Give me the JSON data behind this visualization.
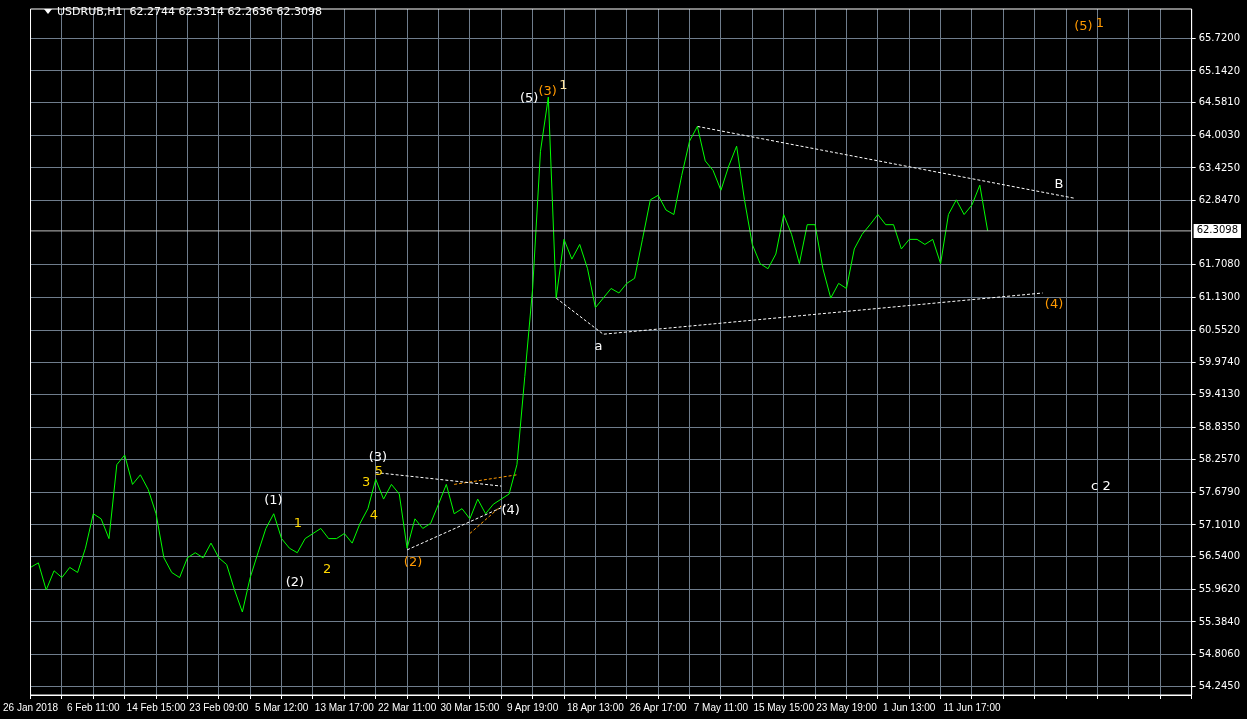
{
  "chart_data": {
    "type": "line",
    "title": "USDRUB,H1  62.2744 62.3314 62.2636 62.3098",
    "categories": [
      "26 Jan 2018",
      null,
      null,
      null,
      null,
      null,
      null,
      null,
      "6 Feb 11:00",
      null,
      null,
      null,
      null,
      null,
      null,
      null,
      "14 Feb 15:00",
      null,
      null,
      null,
      null,
      null,
      null,
      null,
      "23 Feb 09:00",
      null,
      null,
      null,
      null,
      null,
      null,
      null,
      "5 Mar 12:00",
      null,
      null,
      null,
      null,
      null,
      null,
      null,
      "13 Mar 17:00",
      null,
      null,
      null,
      null,
      null,
      null,
      null,
      "22 Mar 11:00",
      null,
      null,
      null,
      null,
      null,
      null,
      null,
      "30 Mar 15:00",
      null,
      null,
      null,
      null,
      null,
      null,
      null,
      "9 Apr 19:00",
      null,
      null,
      null,
      null,
      null,
      null,
      null,
      "18 Apr 13:00",
      null,
      null,
      null,
      null,
      null,
      null,
      null,
      "26 Apr 17:00",
      null,
      null,
      null,
      null,
      null,
      null,
      null,
      "7 May 11:00",
      null,
      null,
      null,
      null,
      null,
      null,
      null,
      "15 May 15:00",
      null,
      null,
      null,
      null,
      null,
      null,
      null,
      "23 May 19:00",
      null,
      null,
      null,
      null,
      null,
      null,
      null,
      "1 Jun 13:00",
      null,
      null,
      null,
      null,
      null,
      null,
      null,
      "11 Jun 17:00",
      null,
      null,
      null,
      null,
      null,
      null,
      null,
      null,
      null,
      null,
      null,
      null,
      null,
      null,
      null,
      null,
      null,
      null,
      null,
      null,
      null,
      null,
      null,
      null,
      null,
      null,
      null,
      null
    ],
    "ylim": [
      54.09,
      66.24
    ],
    "yticks": [
      {
        "value": 54.245,
        "label": "54.2450"
      },
      {
        "value": 54.806,
        "label": "54.8060"
      },
      {
        "value": 55.384,
        "label": "55.3840"
      },
      {
        "value": 55.962,
        "label": "55.9620"
      },
      {
        "value": 56.54,
        "label": "56.5400"
      },
      {
        "value": 57.101,
        "label": "57.1010"
      },
      {
        "value": 57.679,
        "label": "57.6790"
      },
      {
        "value": 58.257,
        "label": "58.2570"
      },
      {
        "value": 58.835,
        "label": "58.8350"
      },
      {
        "value": 59.413,
        "label": "59.4130"
      },
      {
        "value": 59.974,
        "label": "59.9740"
      },
      {
        "value": 60.552,
        "label": "60.5520"
      },
      {
        "value": 61.13,
        "label": "61.1300"
      },
      {
        "value": 61.708,
        "label": "61.7080"
      },
      {
        "value": 62.847,
        "label": "62.8470"
      },
      {
        "value": 63.425,
        "label": "63.4250"
      },
      {
        "value": 64.003,
        "label": "64.0030"
      },
      {
        "value": 64.581,
        "label": "64.5810"
      },
      {
        "value": 65.142,
        "label": "65.1420"
      },
      {
        "value": 65.72,
        "label": "65.7200"
      }
    ],
    "grid": true,
    "ref_lines": [
      {
        "axis": "y",
        "value": 62.3098,
        "label": "62.3098",
        "color": "#c0c0c0"
      }
    ],
    "series": [
      {
        "type": "line",
        "color": "#00ff00",
        "values": [
          56.35,
          56.43,
          55.95,
          56.29,
          56.17,
          56.35,
          56.26,
          56.69,
          57.3,
          57.21,
          56.86,
          58.17,
          58.34,
          57.82,
          57.99,
          57.73,
          57.3,
          56.52,
          56.26,
          56.17,
          56.52,
          56.61,
          56.52,
          56.78,
          56.52,
          56.4,
          55.95,
          55.56,
          56.17,
          56.61,
          57.04,
          57.3,
          56.86,
          56.69,
          56.61,
          56.86,
          56.95,
          57.04,
          56.86,
          56.86,
          56.95,
          56.78,
          57.13,
          57.39,
          57.91,
          57.56,
          57.82,
          57.65,
          56.69,
          57.21,
          57.04,
          57.13,
          57.47,
          57.82,
          57.3,
          57.39,
          57.21,
          57.56,
          57.3,
          57.47,
          57.56,
          57.65,
          58.17,
          59.73,
          61.29,
          63.72,
          64.68,
          61.12,
          62.16,
          61.81,
          62.07,
          61.64,
          60.95,
          61.12,
          61.29,
          61.21,
          61.38,
          61.47,
          62.16,
          62.86,
          62.94,
          62.68,
          62.6,
          63.29,
          63.9,
          64.16,
          63.55,
          63.38,
          63.03,
          63.46,
          63.81,
          62.86,
          62.07,
          61.73,
          61.64,
          61.9,
          62.6,
          62.25,
          61.73,
          62.42,
          62.42,
          61.64,
          61.12,
          61.38,
          61.29,
          61.99,
          62.25,
          62.42,
          62.6,
          62.42,
          62.42,
          61.99,
          62.16,
          62.16,
          62.07,
          62.16,
          61.73,
          62.6,
          62.86,
          62.6,
          62.77,
          63.12,
          62.31,
          null,
          null,
          null,
          null,
          null,
          null,
          null,
          null,
          null,
          null,
          null,
          null,
          null,
          null,
          null,
          null,
          null,
          null,
          null,
          null,
          null,
          null,
          null,
          null,
          null,
          null
        ]
      },
      {
        "type": "line",
        "color": "#ffffff",
        "line_style": "dashed",
        "values": [
          null,
          null,
          null,
          null,
          null,
          null,
          null,
          null,
          null,
          null,
          null,
          null,
          null,
          null,
          null,
          null,
          null,
          null,
          null,
          null,
          null,
          null,
          null,
          null,
          null,
          null,
          null,
          null,
          null,
          null,
          null,
          null,
          null,
          null,
          null,
          null,
          null,
          null,
          null,
          null,
          null,
          null,
          null,
          null,
          null,
          null,
          null,
          null,
          null,
          null,
          null,
          null,
          null,
          null,
          null,
          null,
          null,
          null,
          null,
          null,
          null,
          null,
          null,
          null,
          null,
          null,
          null,
          null,
          null,
          null,
          null,
          null,
          null,
          null,
          null,
          null,
          null,
          null,
          null,
          null,
          null,
          null,
          null,
          null,
          null,
          64.16,
          null,
          null,
          null,
          null,
          null,
          null,
          null,
          null,
          null,
          null,
          null,
          null,
          null,
          null,
          null,
          null,
          null,
          null,
          null,
          null,
          null,
          null,
          null,
          null,
          null,
          null,
          null,
          null,
          null,
          null,
          null,
          null,
          null,
          null,
          null,
          null,
          null,
          null,
          null,
          null,
          null,
          null,
          null,
          null,
          null,
          null,
          null,
          62.89,
          null,
          null,
          null,
          null,
          null,
          null,
          null,
          null,
          null,
          null,
          null,
          null,
          null,
          null,
          null
        ]
      },
      {
        "type": "line",
        "color": "#ffffff",
        "line_style": "dashed",
        "values": [
          null,
          null,
          null,
          null,
          null,
          null,
          null,
          null,
          null,
          null,
          null,
          null,
          null,
          null,
          null,
          null,
          null,
          null,
          null,
          null,
          null,
          null,
          null,
          null,
          null,
          null,
          null,
          null,
          null,
          null,
          null,
          null,
          null,
          null,
          null,
          null,
          null,
          null,
          null,
          null,
          null,
          null,
          null,
          null,
          null,
          null,
          null,
          null,
          null,
          null,
          null,
          null,
          null,
          null,
          null,
          null,
          null,
          null,
          null,
          null,
          null,
          null,
          null,
          null,
          null,
          null,
          null,
          61.12,
          null,
          null,
          null,
          null,
          null,
          60.48,
          null,
          null,
          null,
          null,
          null,
          null,
          null,
          null,
          null,
          null,
          null,
          null,
          null,
          null,
          null,
          null,
          null,
          null,
          null,
          null,
          null,
          null,
          null,
          null,
          null,
          null,
          null,
          null,
          null,
          null,
          null,
          null,
          null,
          null,
          null,
          null,
          null,
          null,
          null,
          null,
          null,
          null,
          null,
          null,
          null,
          null,
          null,
          null,
          null,
          null,
          null,
          null,
          null,
          null,
          null,
          61.21,
          null,
          null,
          null,
          null,
          null,
          null,
          null,
          null,
          null,
          null,
          null,
          null,
          null,
          null,
          null,
          null,
          null,
          null,
          null
        ]
      },
      {
        "type": "line",
        "color": "#ffffff",
        "line_style": "dashed",
        "values": [
          null,
          null,
          null,
          null,
          null,
          null,
          null,
          null,
          null,
          null,
          null,
          null,
          null,
          null,
          null,
          null,
          null,
          null,
          null,
          null,
          null,
          null,
          null,
          null,
          null,
          null,
          null,
          null,
          null,
          null,
          null,
          null,
          null,
          null,
          null,
          null,
          null,
          null,
          null,
          null,
          null,
          null,
          null,
          null,
          58.03,
          null,
          null,
          null,
          null,
          null,
          null,
          null,
          null,
          null,
          null,
          null,
          null,
          null,
          null,
          null,
          57.79,
          null,
          null,
          null,
          null,
          null,
          null,
          null,
          null,
          null,
          null,
          null,
          null,
          null,
          null,
          null,
          null,
          null,
          null,
          null,
          null,
          null,
          null,
          null,
          null,
          null,
          null,
          null,
          null,
          null,
          null,
          null,
          null,
          null,
          null,
          null,
          null,
          null,
          null,
          null,
          null,
          null,
          null,
          null,
          null,
          null,
          null,
          null,
          null,
          null,
          null,
          null,
          null,
          null,
          null,
          null,
          null,
          null,
          null,
          null,
          null,
          null,
          null,
          null,
          null,
          null,
          null,
          null,
          null,
          null,
          null,
          null,
          null,
          null,
          null,
          null,
          null,
          null,
          null,
          null,
          null,
          null,
          null,
          null,
          null,
          null,
          null,
          null,
          null
        ]
      },
      {
        "type": "line",
        "color": "#ffffff",
        "line_style": "dashed",
        "values": [
          null,
          null,
          null,
          null,
          null,
          null,
          null,
          null,
          null,
          null,
          null,
          null,
          null,
          null,
          null,
          null,
          null,
          null,
          null,
          null,
          null,
          null,
          null,
          null,
          null,
          null,
          null,
          null,
          null,
          null,
          null,
          null,
          null,
          null,
          null,
          null,
          null,
          null,
          null,
          null,
          null,
          null,
          null,
          null,
          null,
          null,
          null,
          null,
          56.66,
          null,
          null,
          null,
          null,
          null,
          null,
          null,
          null,
          null,
          null,
          null,
          null,
          57.47,
          null,
          null,
          null,
          null,
          null,
          null,
          null,
          null,
          null,
          null,
          null,
          null,
          null,
          null,
          null,
          null,
          null,
          null,
          null,
          null,
          null,
          null,
          null,
          null,
          null,
          null,
          null,
          null,
          null,
          null,
          null,
          null,
          null,
          null,
          null,
          null,
          null,
          null,
          null,
          null,
          null,
          null,
          null,
          null,
          null,
          null,
          null,
          null,
          null,
          null,
          null,
          null,
          null,
          null,
          null,
          null,
          null,
          null,
          null,
          null,
          null,
          null,
          null,
          null,
          null,
          null,
          null,
          null,
          null,
          null,
          null,
          null,
          null,
          null,
          null,
          null,
          null,
          null,
          null,
          null,
          null,
          null,
          null,
          null,
          null,
          null,
          null
        ]
      },
      {
        "type": "line",
        "color": "#ff9900",
        "line_style": "dashed",
        "values": [
          null,
          null,
          null,
          null,
          null,
          null,
          null,
          null,
          null,
          null,
          null,
          null,
          null,
          null,
          null,
          null,
          null,
          null,
          null,
          null,
          null,
          null,
          null,
          null,
          null,
          null,
          null,
          null,
          null,
          null,
          null,
          null,
          null,
          null,
          null,
          null,
          null,
          null,
          null,
          null,
          null,
          null,
          null,
          null,
          null,
          null,
          null,
          null,
          null,
          null,
          null,
          null,
          null,
          null,
          57.82,
          null,
          null,
          null,
          null,
          null,
          null,
          null,
          57.99,
          null,
          null,
          null,
          null,
          null,
          null,
          null,
          null,
          null,
          null,
          null,
          null,
          null,
          null,
          null,
          null,
          null,
          null,
          null,
          null,
          null,
          null,
          null,
          null,
          null,
          null,
          null,
          null,
          null,
          null,
          null,
          null,
          null,
          null,
          null,
          null,
          null,
          null,
          null,
          null,
          null,
          null,
          null,
          null,
          null,
          null,
          null,
          null,
          null,
          null,
          null,
          null,
          null,
          null,
          null,
          null,
          null,
          null,
          null,
          null,
          null,
          null,
          null,
          null,
          null,
          null,
          null,
          null,
          null,
          null,
          null,
          null,
          null,
          null,
          null,
          null,
          null,
          null,
          null,
          null,
          null,
          null,
          null,
          null,
          null,
          null
        ]
      },
      {
        "type": "line",
        "color": "#ff9900",
        "line_style": "dashed",
        "values": [
          null,
          null,
          null,
          null,
          null,
          null,
          null,
          null,
          null,
          null,
          null,
          null,
          null,
          null,
          null,
          null,
          null,
          null,
          null,
          null,
          null,
          null,
          null,
          null,
          null,
          null,
          null,
          null,
          null,
          null,
          null,
          null,
          null,
          null,
          null,
          null,
          null,
          null,
          null,
          null,
          null,
          null,
          null,
          null,
          null,
          null,
          null,
          null,
          null,
          null,
          null,
          null,
          null,
          null,
          null,
          null,
          56.95,
          null,
          null,
          null,
          57.44,
          null,
          null,
          null,
          null,
          null,
          null,
          null,
          null,
          null,
          null,
          null,
          null,
          null,
          null,
          null,
          null,
          null,
          null,
          null,
          null,
          null,
          null,
          null,
          null,
          null,
          null,
          null,
          null,
          null,
          null,
          null,
          null,
          null,
          null,
          null,
          null,
          null,
          null,
          null,
          null,
          null,
          null,
          null,
          null,
          null,
          null,
          null,
          null,
          null,
          null,
          null,
          null,
          null,
          null,
          null,
          null,
          null,
          null,
          null,
          null,
          null,
          null,
          null,
          null,
          null,
          null,
          null,
          null,
          null,
          null,
          null,
          null,
          null,
          null,
          null,
          null,
          null,
          null,
          null,
          null,
          null,
          null,
          null,
          null,
          null,
          null,
          null,
          null
        ]
      }
    ],
    "annotations": [
      "(5)",
      "(3)",
      "1",
      "a",
      "B",
      "(4)",
      "(5)",
      "1",
      "c 2",
      "(3)",
      "3",
      "5",
      "4",
      "(1)",
      "1",
      "(2)",
      "2",
      "(2)",
      "(4)"
    ]
  }
}
